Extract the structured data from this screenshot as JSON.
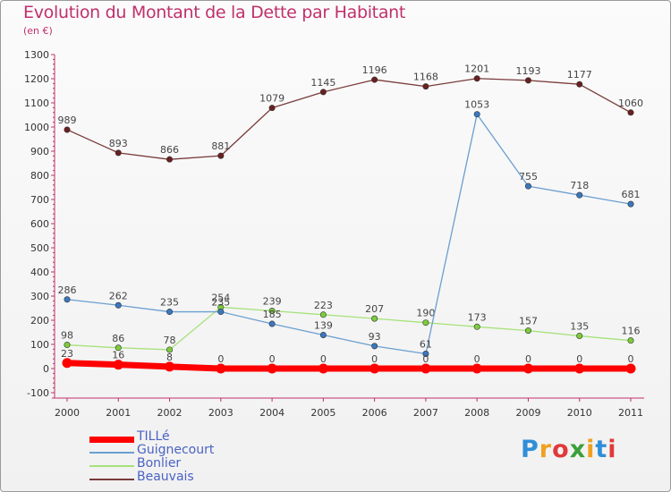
{
  "header": {
    "title": "Evolution du Montant de la Dette par Habitant",
    "subtitle": "(en €)"
  },
  "logo": {
    "text": "Proxiti",
    "letter_colors": [
      "#2f8fd8",
      "#f0a020",
      "#e03a3a",
      "#3aa03a",
      "#f0a020",
      "#2f8fd8",
      "#e03a3a"
    ]
  },
  "chart_data": {
    "type": "line",
    "title": "Evolution du Montant de la Dette par Habitant",
    "subtitle": "(en €)",
    "xlabel": "",
    "ylabel": "",
    "x": [
      "2000",
      "2001",
      "2002",
      "2003",
      "2004",
      "2005",
      "2006",
      "2007",
      "2008",
      "2009",
      "2010",
      "2011"
    ],
    "ylim": [
      -100,
      1300
    ],
    "yticks": [
      -100,
      0,
      100,
      200,
      300,
      400,
      500,
      600,
      700,
      800,
      900,
      1000,
      1100,
      1200,
      1300
    ],
    "grid": false,
    "legend_position": "bottom-left",
    "series": [
      {
        "name": "TILLé",
        "color": "#ff0000",
        "values": [
          23,
          16,
          8,
          0,
          0,
          0,
          0,
          0,
          0,
          0,
          0,
          0
        ],
        "labels": [
          "23",
          "16",
          "8",
          "0",
          "0",
          "0",
          "0",
          "0",
          "0",
          "0",
          "0",
          "0"
        ]
      },
      {
        "name": "Guignecourt",
        "color": "#6a9fd0",
        "marker_color": "#3a78c0",
        "values": [
          286,
          262,
          235,
          235,
          185,
          139,
          93,
          61,
          1053,
          755,
          718,
          681
        ],
        "labels": [
          "286",
          "262",
          "235",
          "235",
          "185",
          "139",
          "93",
          "61",
          "1053",
          "755",
          "718",
          "681"
        ]
      },
      {
        "name": "Bonlier",
        "color": "#a6e27a",
        "marker_color": "#7ccc3c",
        "values": [
          98,
          86,
          78,
          254,
          239,
          223,
          207,
          190,
          173,
          157,
          135,
          116
        ],
        "labels": [
          "98",
          "86",
          "78",
          "254",
          "239",
          "223",
          "207",
          "190",
          "173",
          "157",
          "135",
          "116"
        ]
      },
      {
        "name": "Beauvais",
        "color": "#7a3a3a",
        "marker_color": "#6a2020",
        "values": [
          989,
          893,
          866,
          881,
          1079,
          1145,
          1196,
          1168,
          1201,
          1193,
          1177,
          1060
        ],
        "labels": [
          "989",
          "893",
          "866",
          "881",
          "1079",
          "1145",
          "1196",
          "1168",
          "1201",
          "1193",
          "1177",
          "1060"
        ]
      }
    ]
  }
}
